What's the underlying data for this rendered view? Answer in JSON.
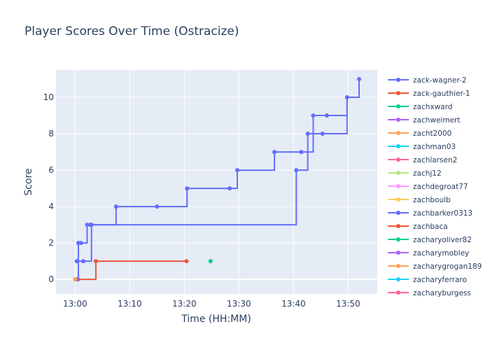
{
  "chart_data": {
    "type": "line",
    "title": "Player Scores Over Time (Ostracize)",
    "xlabel": "Time (HH:MM)",
    "ylabel": "Score",
    "line_shape": "step",
    "x_ticks": [
      "13:00",
      "13:10",
      "13:20",
      "13:30",
      "13:40",
      "13:50"
    ],
    "y_ticks": [
      0,
      2,
      4,
      6,
      8,
      10
    ],
    "xlim": [
      "12:56:30",
      "13:55:20"
    ],
    "ylim": [
      -0.8,
      11.5
    ],
    "grid": true,
    "legend_position": "right",
    "colors": {
      "background": "#e5ecf6",
      "grid": "#ffffff",
      "text": "#2a3f5f"
    },
    "series": [
      {
        "name": "zack-wagner-2",
        "color": "#636efa",
        "x": [
          "13:00:30",
          "13:00:36",
          "13:01:06",
          "13:02:12",
          "13:02:48",
          "13:07:30",
          "13:15:00",
          "13:20:30",
          "13:28:18",
          "13:29:42",
          "13:36:30",
          "13:41:24",
          "13:43:36",
          "13:46:06",
          "13:49:48",
          "13:52:00"
        ],
        "y": [
          0,
          2,
          2,
          3,
          3,
          4,
          4,
          5,
          5,
          6,
          7,
          7,
          9,
          9,
          10,
          11
        ]
      },
      {
        "name": "zack-gauthier-1",
        "color": "#ef553b",
        "x": [],
        "y": []
      },
      {
        "name": "zachxward",
        "color": "#00cc96",
        "x": [],
        "y": []
      },
      {
        "name": "zachweimert",
        "color": "#ab63fa",
        "x": [],
        "y": []
      },
      {
        "name": "zacht2000",
        "color": "#ffa15a",
        "x": [],
        "y": []
      },
      {
        "name": "zachman03",
        "color": "#19d3f3",
        "x": [],
        "y": []
      },
      {
        "name": "zachlarsen2",
        "color": "#ff6692",
        "x": [],
        "y": []
      },
      {
        "name": "zachj12",
        "color": "#b6e880",
        "x": [],
        "y": []
      },
      {
        "name": "zachdegroat77",
        "color": "#ff97ff",
        "x": [],
        "y": []
      },
      {
        "name": "zachboulb",
        "color": "#fecb52",
        "x": [
          "13:00:06"
        ],
        "y": [
          0
        ]
      },
      {
        "name": "zachbarker0313",
        "color": "#636efa",
        "x": [
          "13:00:18",
          "13:01:30",
          "13:03:00",
          "13:40:30",
          "13:42:36",
          "13:45:18",
          "13:49:48"
        ],
        "y": [
          1,
          1,
          3,
          6,
          8,
          8,
          10
        ]
      },
      {
        "name": "zachbaca",
        "color": "#ef553b",
        "x": [
          "13:00:12",
          "13:03:48",
          "13:20:24"
        ],
        "y": [
          0,
          1,
          1
        ]
      },
      {
        "name": "zacharyoliver82",
        "color": "#00cc96",
        "x": [
          "13:24:48"
        ],
        "y": [
          1
        ]
      },
      {
        "name": "zacharymobley",
        "color": "#ab63fa",
        "x": [],
        "y": []
      },
      {
        "name": "zacharygrogan189",
        "color": "#ffa15a",
        "x": [
          "13:00:00"
        ],
        "y": [
          0
        ]
      },
      {
        "name": "zacharyferraro",
        "color": "#19d3f3",
        "x": [],
        "y": []
      },
      {
        "name": "zacharyburgess",
        "color": "#ff6692",
        "x": [],
        "y": []
      }
    ]
  }
}
